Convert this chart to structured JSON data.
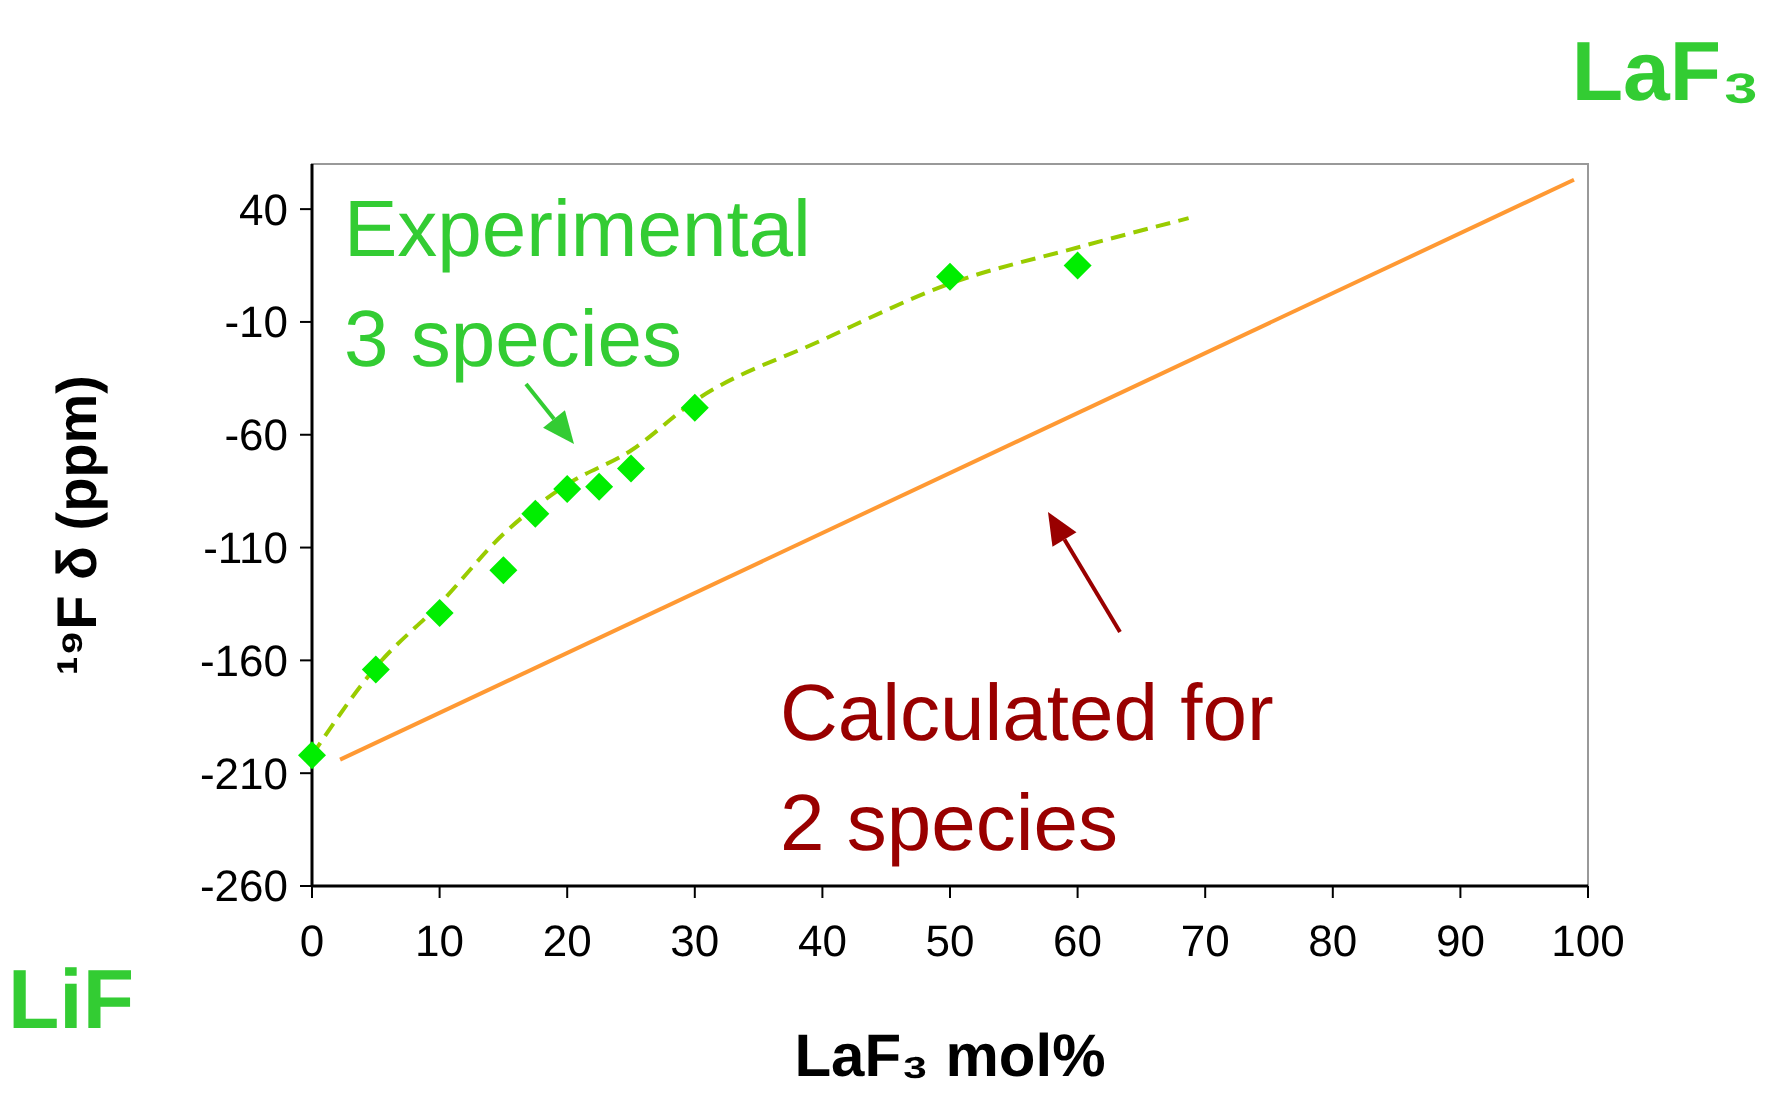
{
  "chart_data": {
    "type": "scatter",
    "xlabel": "LaF₃ mol%",
    "ylabel": "¹⁹F δ (ppm)",
    "xlim": [
      0,
      100
    ],
    "xticks": [
      0,
      10,
      20,
      30,
      40,
      50,
      60,
      70,
      80,
      90,
      100
    ],
    "ylim": [
      -260,
      60
    ],
    "yticks": [
      -260,
      -210,
      -160,
      -110,
      -60,
      -10,
      40
    ],
    "grid": false,
    "series": [
      {
        "type": "line",
        "color": "#99cc00",
        "line_style": "dashed",
        "marker": "none",
        "x": [
          0,
          5,
          10,
          15,
          20,
          25,
          30,
          40,
          50,
          60,
          68.7
        ],
        "values": [
          -202,
          -163,
          -135,
          -104,
          -82,
          -67,
          -45,
          -18,
          7,
          23,
          36
        ]
      },
      {
        "type": "line",
        "color": "#ff9933",
        "line_style": "solid",
        "marker": "none",
        "x": [
          2.2,
          98.9
        ],
        "values": [
          -204,
          53
        ]
      },
      {
        "color": "#00ee00",
        "marker": "diamond",
        "x": [
          0,
          5,
          10,
          15,
          17.5,
          20,
          22.5,
          25,
          30,
          50,
          60
        ],
        "values": [
          -202,
          -164,
          -139,
          -120,
          -95,
          -84,
          -83,
          -75,
          -48,
          10,
          15
        ]
      }
    ],
    "annotations": [
      "Experimental\n3 species",
      "Calculated for\n2 species",
      "LiF",
      "LaF₃"
    ]
  }
}
